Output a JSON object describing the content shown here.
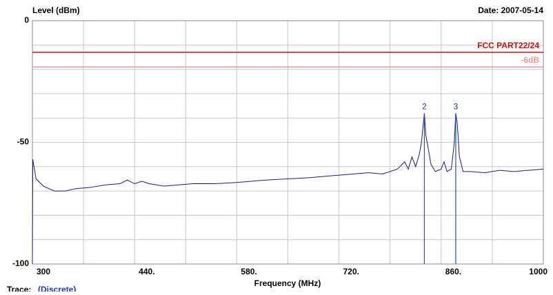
{
  "chart_data": {
    "type": "line",
    "y_label": "Level (dBm)",
    "date": "Date: 2007-05-14",
    "x_label": "Frequency (MHz)",
    "trace_label": "Trace:",
    "trace_mode": "(Discrete)",
    "xlim": [
      300,
      1000
    ],
    "ylim": [
      -100,
      0
    ],
    "xticks": [
      300,
      {
        "value": 440,
        "label": "440."
      },
      {
        "value": 580,
        "label": "580."
      },
      {
        "value": 720,
        "label": "720."
      },
      {
        "value": 860,
        "label": "860."
      },
      1000
    ],
    "yticks": [
      0,
      -50,
      -100
    ],
    "xgrid": [
      370,
      440,
      510,
      580,
      650,
      720,
      790,
      860,
      930
    ],
    "ygrid": [
      -10,
      -20,
      -30,
      -40,
      -50,
      -60,
      -70,
      -80,
      -90
    ],
    "limit_lines": [
      {
        "label": "FCC PART22/24",
        "value": -13,
        "color": "#cc1111"
      },
      {
        "label": "-6dB",
        "value": -19,
        "color": "#e89a9a"
      }
    ],
    "markers": [
      {
        "label": "2",
        "x": 837,
        "value": -38
      },
      {
        "label": "3",
        "x": 880,
        "value": -38
      }
    ],
    "series": [
      {
        "name": "Trace",
        "color": "#1a1a80",
        "x": [
          300,
          300.5,
          305,
          315,
          330,
          345,
          360,
          380,
          400,
          420,
          430,
          440,
          450,
          460,
          480,
          500,
          520,
          550,
          580,
          600,
          620,
          650,
          680,
          700,
          720,
          740,
          760,
          780,
          800,
          810,
          815,
          820,
          825,
          830,
          833,
          837,
          839,
          842,
          846,
          852,
          860,
          864,
          868,
          874,
          878,
          880,
          882,
          885,
          890,
          900,
          920,
          940,
          960,
          980,
          1000
        ],
        "values": [
          -100,
          -57,
          -65,
          -68,
          -70,
          -70,
          -69,
          -68.5,
          -67.5,
          -67,
          -65.5,
          -67,
          -66,
          -67,
          -68,
          -67.5,
          -67,
          -67,
          -66.5,
          -66,
          -65.5,
          -65,
          -64.5,
          -64,
          -63.5,
          -63,
          -62.5,
          -63,
          -61,
          -58,
          -61,
          -56,
          -60,
          -55,
          -50,
          -38,
          -47,
          -52,
          -59,
          -62,
          -61,
          -58,
          -62,
          -61,
          -50,
          -38,
          -42,
          -56,
          -62,
          -62,
          -62.5,
          -61.5,
          -62,
          -61.5,
          -61
        ]
      }
    ]
  }
}
